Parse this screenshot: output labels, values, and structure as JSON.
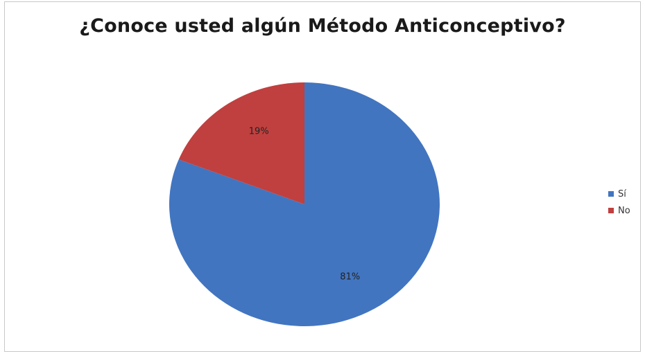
{
  "chart_data": {
    "type": "pie",
    "title": "¿Conoce usted algún Método Anticonceptivo?",
    "categories": [
      "Sí",
      "No"
    ],
    "values": [
      81,
      19
    ],
    "data_labels": [
      "81%",
      "19%"
    ],
    "colors": [
      "#4275c0",
      "#c0403f"
    ],
    "legend_position": "right",
    "start_angle_deg": 0,
    "direction": "clockwise"
  },
  "legend": {
    "items": [
      {
        "label": "Sí",
        "color": "#4275c0"
      },
      {
        "label": "No",
        "color": "#c0403f"
      }
    ]
  }
}
